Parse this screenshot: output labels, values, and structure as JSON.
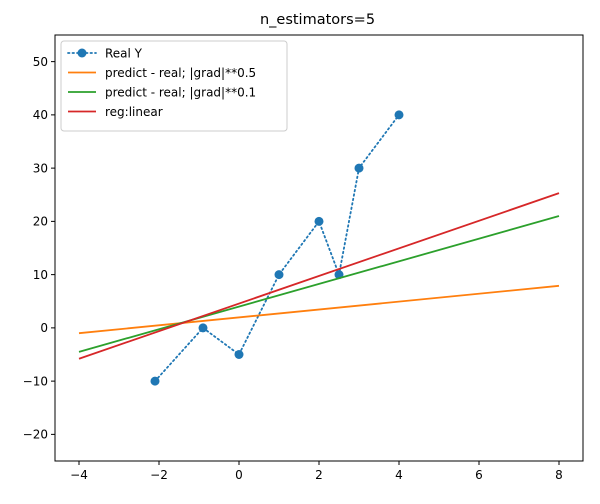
{
  "chart_data": {
    "type": "line",
    "title": "n_estimators=5",
    "xlabel": "",
    "ylabel": "",
    "xlim": [
      -4.6,
      8.6
    ],
    "ylim": [
      -25,
      55
    ],
    "xticks": [
      -4,
      -2,
      0,
      2,
      4,
      6,
      8
    ],
    "yticks": [
      -20,
      -10,
      0,
      10,
      20,
      30,
      40,
      50
    ],
    "grid": false,
    "legend_position": "top-left",
    "series": [
      {
        "name": "Real Y",
        "style": "dotted-with-markers",
        "color": "#1f77b4",
        "x": [
          -2.1,
          -0.9,
          0,
          1,
          2,
          2.5,
          3,
          4
        ],
        "y": [
          -10,
          0,
          -5,
          10,
          20,
          10,
          30,
          40
        ]
      },
      {
        "name": "predict - real; |grad|**0.5",
        "style": "solid",
        "color": "#ff7f0e",
        "x": [
          -4,
          8
        ],
        "y": [
          -1,
          7.9
        ]
      },
      {
        "name": "predict - real; |grad|**0.1",
        "style": "solid",
        "color": "#2ca02c",
        "x": [
          -4,
          8
        ],
        "y": [
          -4.5,
          21
        ]
      },
      {
        "name": "reg:linear",
        "style": "solid",
        "color": "#d62728",
        "x": [
          -4,
          8
        ],
        "y": [
          -5.8,
          25.3
        ]
      }
    ]
  }
}
